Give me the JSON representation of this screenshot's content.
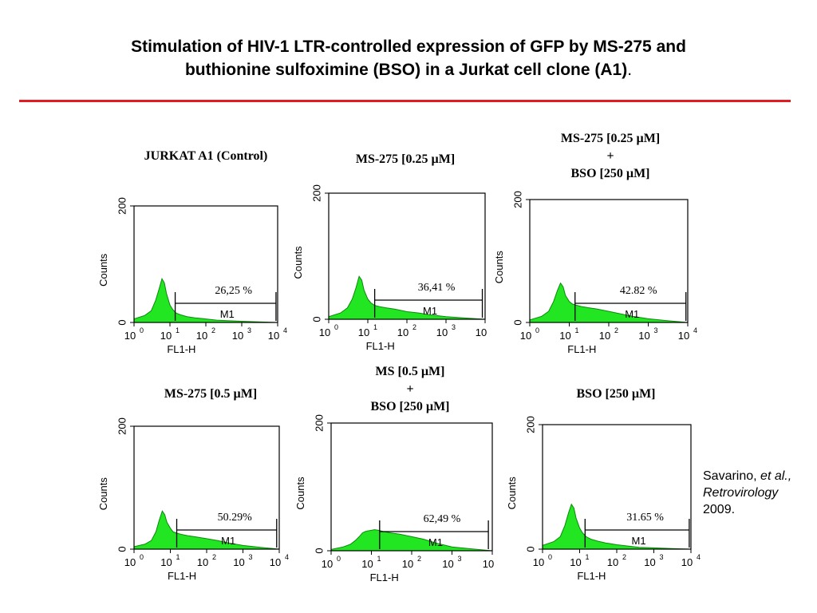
{
  "slide": {
    "title_line1": "Stimulation of HIV-1 LTR-controlled expression of GFP by MS-275 and",
    "title_line2": "buthionine sulfoximine (BSO) in a Jurkat cell clone (A1)",
    "title_suffix": ".",
    "rule_color": "#e31b23"
  },
  "citation": {
    "author": "Savarino,",
    "etal": "et al.,",
    "journal": "Retrovirology",
    "year": "2009."
  },
  "colors": {
    "histogram_fill": "#22e622",
    "axis": "#000000"
  },
  "chart_data": [
    {
      "type": "area",
      "title_lines": [
        "JURKAT A1 (Control)"
      ],
      "xlabel": "FL1-H",
      "ylabel": "Counts",
      "x_scale": "log",
      "xlim": [
        1,
        10000
      ],
      "ylim": [
        0,
        200
      ],
      "x_ticks": [
        "10",
        "10",
        "10",
        "10",
        "10"
      ],
      "x_tick_exps": [
        "0",
        "1",
        "2",
        "3",
        "4"
      ],
      "y_ticks": [
        "0",
        "200"
      ],
      "gate": {
        "label": "M1",
        "percent": "26,25 %",
        "from": 14,
        "to": 9000
      },
      "series": [
        {
          "x": [
            1,
            2,
            3,
            4,
            5,
            6,
            7,
            8,
            10,
            12,
            15,
            20,
            30,
            50,
            100,
            200,
            400,
            1000,
            3000,
            10000
          ],
          "y": [
            6,
            12,
            20,
            38,
            58,
            75,
            68,
            50,
            30,
            22,
            16,
            13,
            10,
            8,
            6,
            4,
            3,
            2,
            1,
            0
          ]
        }
      ]
    },
    {
      "type": "area",
      "title_lines": [
        "MS-275 [0.25 µM]"
      ],
      "xlabel": "FL1-H",
      "ylabel": "Counts",
      "x_scale": "log",
      "xlim": [
        1,
        10000
      ],
      "ylim": [
        0,
        200
      ],
      "x_ticks": [
        "10",
        "10",
        "10",
        "10",
        "10"
      ],
      "x_tick_exps": [
        "0",
        "1",
        "2",
        "3",
        ""
      ],
      "y_ticks": [
        "0",
        "200"
      ],
      "gate": {
        "label": "M1",
        "percent": "36,41 %",
        "from": 15,
        "to": 8500
      },
      "series": [
        {
          "x": [
            1,
            2,
            3,
            4,
            5,
            6,
            7,
            8,
            10,
            12,
            15,
            20,
            30,
            50,
            100,
            200,
            400,
            1000,
            3000,
            10000
          ],
          "y": [
            4,
            10,
            18,
            32,
            50,
            68,
            62,
            46,
            32,
            26,
            22,
            20,
            18,
            16,
            12,
            10,
            7,
            4,
            2,
            0
          ]
        }
      ]
    },
    {
      "type": "area",
      "title_lines": [
        "MS-275 [0.25 µM]",
        "+",
        "BSO [250 µM]"
      ],
      "xlabel": "FL1-H",
      "ylabel": "Counts",
      "x_scale": "log",
      "xlim": [
        1,
        10000
      ],
      "ylim": [
        0,
        200
      ],
      "x_ticks": [
        "10",
        "10",
        "10",
        "10",
        "10"
      ],
      "x_tick_exps": [
        "0",
        "1",
        "2",
        "3",
        "4"
      ],
      "y_ticks": [
        "0",
        "200"
      ],
      "gate": {
        "label": "M1",
        "percent": "42.82 %",
        "from": 14,
        "to": 9000
      },
      "series": [
        {
          "x": [
            1,
            2,
            3,
            4,
            5,
            6,
            7,
            8,
            10,
            12,
            15,
            20,
            30,
            50,
            100,
            200,
            400,
            1000,
            3000,
            10000
          ],
          "y": [
            4,
            10,
            18,
            34,
            52,
            64,
            58,
            44,
            34,
            30,
            28,
            26,
            24,
            22,
            18,
            14,
            10,
            6,
            3,
            0
          ]
        }
      ]
    },
    {
      "type": "area",
      "title_lines": [
        "MS-275 [0.5 µM]"
      ],
      "xlabel": "FL1-H",
      "ylabel": "Counts",
      "x_scale": "log",
      "xlim": [
        1,
        10000
      ],
      "ylim": [
        0,
        200
      ],
      "x_ticks": [
        "10",
        "10",
        "10",
        "10",
        "10"
      ],
      "x_tick_exps": [
        "0",
        "1",
        "2",
        "3",
        "4"
      ],
      "y_ticks": [
        "0",
        "200"
      ],
      "gate": {
        "label": "M1",
        "percent": "50.29%",
        "from": 15,
        "to": 8500
      },
      "series": [
        {
          "x": [
            1,
            2,
            3,
            4,
            5,
            6,
            7,
            8,
            10,
            12,
            15,
            20,
            30,
            50,
            100,
            200,
            400,
            1000,
            3000,
            10000
          ],
          "y": [
            4,
            8,
            14,
            28,
            48,
            62,
            56,
            44,
            34,
            28,
            26,
            24,
            22,
            20,
            17,
            14,
            10,
            6,
            3,
            0
          ]
        }
      ]
    },
    {
      "type": "area",
      "title_lines": [
        "MS [0.5 µM]",
        "+",
        "BSO [250 µM]"
      ],
      "xlabel": "FL1-H",
      "ylabel": "Counts",
      "x_scale": "log",
      "xlim": [
        1,
        10000
      ],
      "ylim": [
        0,
        200
      ],
      "x_ticks": [
        "10",
        "10",
        "10",
        "10",
        "10"
      ],
      "x_tick_exps": [
        "0",
        "1",
        "2",
        "3",
        ""
      ],
      "y_ticks": [
        "0",
        "200"
      ],
      "gate": {
        "label": "M1",
        "percent": "62,49 %",
        "from": 16,
        "to": 8000
      },
      "series": [
        {
          "x": [
            1,
            2,
            3,
            4,
            5,
            6,
            7,
            8,
            10,
            12,
            15,
            20,
            30,
            50,
            100,
            200,
            400,
            1000,
            3000,
            10000
          ],
          "y": [
            2,
            6,
            10,
            16,
            22,
            28,
            30,
            31,
            32,
            33,
            32,
            30,
            28,
            26,
            22,
            18,
            12,
            6,
            3,
            0
          ]
        }
      ]
    },
    {
      "type": "area",
      "title_lines": [
        "BSO [250 µM]"
      ],
      "xlabel": "FL1-H",
      "ylabel": "Counts",
      "x_scale": "log",
      "xlim": [
        1,
        10000
      ],
      "ylim": [
        0,
        200
      ],
      "x_ticks": [
        "10",
        "10",
        "10",
        "10",
        "10"
      ],
      "x_tick_exps": [
        "0",
        "1",
        "2",
        "3",
        "4"
      ],
      "y_ticks": [
        "0",
        "200"
      ],
      "gate": {
        "label": "M1",
        "percent": "31.65 %",
        "from": 14,
        "to": 9000
      },
      "series": [
        {
          "x": [
            1,
            2,
            3,
            4,
            5,
            6,
            7,
            8,
            10,
            12,
            15,
            20,
            30,
            50,
            100,
            200,
            400,
            1000,
            3000,
            10000
          ],
          "y": [
            6,
            12,
            20,
            38,
            58,
            72,
            66,
            50,
            34,
            26,
            20,
            16,
            13,
            10,
            7,
            5,
            3,
            2,
            1,
            0
          ]
        }
      ]
    }
  ]
}
